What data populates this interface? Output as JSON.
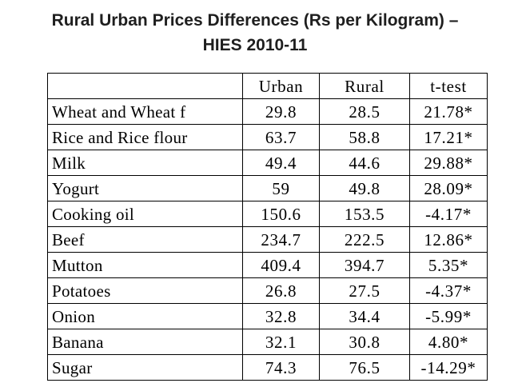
{
  "title": {
    "line1": "Rural Urban Prices Differences (Rs per Kilogram) –",
    "line2": "HIES 2010-11"
  },
  "table": {
    "headers": [
      "",
      "Urban",
      "Rural",
      "t-test"
    ],
    "rows": [
      {
        "item": "Wheat and  Wheat f",
        "urban": "29.8",
        "rural": "28.5",
        "ttest": "21.78*"
      },
      {
        "item": "Rice and Rice flour",
        "urban": "63.7",
        "rural": "58.8",
        "ttest": "17.21*"
      },
      {
        "item": "Milk",
        "urban": "49.4",
        "rural": "44.6",
        "ttest": "29.88*"
      },
      {
        "item": "Yogurt",
        "urban": "59",
        "rural": "49.8",
        "ttest": "28.09*"
      },
      {
        "item": "Cooking oil",
        "urban": "150.6",
        "rural": "153.5",
        "ttest": "-4.17*"
      },
      {
        "item": "Beef",
        "urban": "234.7",
        "rural": "222.5",
        "ttest": "12.86*"
      },
      {
        "item": "Mutton",
        "urban": "409.4",
        "rural": "394.7",
        "ttest": "5.35*"
      },
      {
        "item": "Potatoes",
        "urban": "26.8",
        "rural": "27.5",
        "ttest": "-4.37*"
      },
      {
        "item": "Onion",
        "urban": "32.8",
        "rural": "34.4",
        "ttest": "-5.99*"
      },
      {
        "item": "Banana",
        "urban": "32.1",
        "rural": "30.8",
        "ttest": "4.80*"
      },
      {
        "item": "Sugar",
        "urban": "74.3",
        "rural": "76.5",
        "ttest": "-14.29*"
      }
    ]
  }
}
